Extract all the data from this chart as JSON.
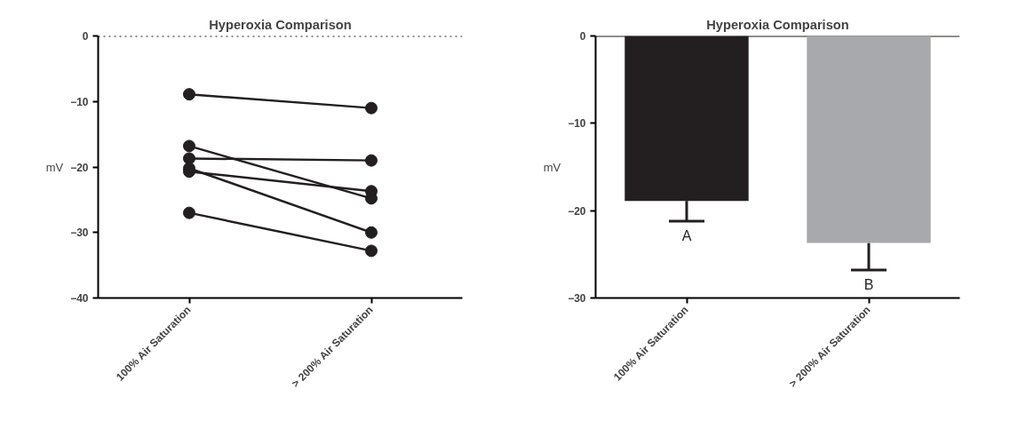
{
  "chart_data": [
    {
      "type": "line",
      "title": "Hyperoxia Comparison",
      "ylabel": "mV",
      "categories": [
        "100% Air Saturation",
        "> 200% Air Saturation"
      ],
      "marker": "circle",
      "line_style": "solid",
      "ylim": [
        -40,
        0
      ],
      "yticks": [
        0,
        -10,
        -20,
        -30,
        -40
      ],
      "ref_lines": [
        {
          "axis": "y",
          "value": 0,
          "line_style": "dotted",
          "color": "#231f20"
        }
      ],
      "series": [
        {
          "color": "#231f20",
          "values": [
            -8.9,
            -11.0
          ]
        },
        {
          "color": "#231f20",
          "values": [
            -16.8,
            -24.8
          ]
        },
        {
          "color": "#231f20",
          "values": [
            -18.7,
            -19.0
          ]
        },
        {
          "color": "#231f20",
          "values": [
            -20.7,
            -23.7
          ]
        },
        {
          "color": "#231f20",
          "values": [
            -20.2,
            -30.0
          ]
        },
        {
          "color": "#231f20",
          "values": [
            -27.0,
            -32.8
          ]
        }
      ]
    },
    {
      "type": "bar",
      "title": "Hyperoxia Comparison",
      "ylabel": "mV",
      "categories": [
        "100% Air Saturation",
        "> 200% Air Saturation"
      ],
      "values": [
        -18.9,
        -23.7
      ],
      "colors": [
        "#231f20",
        "#a7a9ac"
      ],
      "errors": [
        [
          -21.2,
          -18.9
        ],
        [
          -26.8,
          -23.7
        ]
      ],
      "ylim": [
        -30,
        0
      ],
      "yticks": [
        0,
        -10,
        -20,
        -30
      ],
      "ref_lines": [
        {
          "axis": "y",
          "value": 0,
          "line_style": "solid",
          "color": "#231f20"
        }
      ],
      "annotations": [
        "A",
        "B"
      ]
    }
  ]
}
